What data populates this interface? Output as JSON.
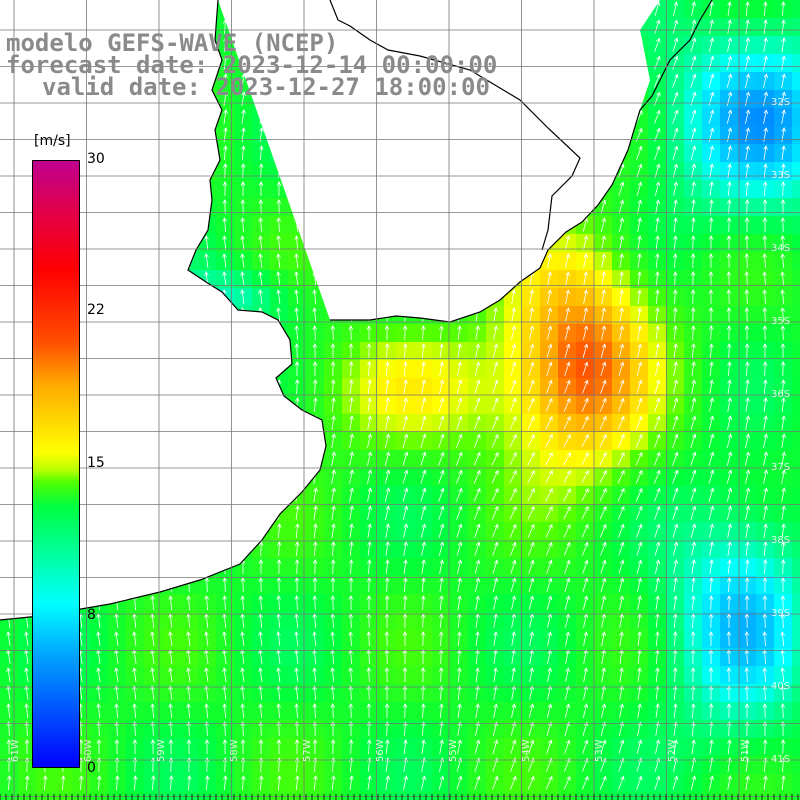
{
  "title": {
    "line1": "modelo GEFS-WAVE (NCEP)",
    "line2": "forecast date: 2023-12-14 00:00:00",
    "line3": "valid date: 2023-12-27 18:00:00"
  },
  "colorbar": {
    "unit": "[m/s]",
    "ticks": [
      "30",
      "22",
      "15",
      "8",
      "0"
    ],
    "min": 0,
    "max": 30
  },
  "map": {
    "variable": "wind speed",
    "lat_labels": [
      "32S",
      "33S",
      "34S",
      "35S",
      "36S",
      "37S",
      "38S",
      "39S",
      "40S",
      "41S"
    ],
    "lon_labels": [
      "61W",
      "60W",
      "59W",
      "58W",
      "57W",
      "56W",
      "55W",
      "54W",
      "53W",
      "52W",
      "51W"
    ],
    "land_color": "#ffffff",
    "coast_color": "#000000",
    "grid_color": "#777777",
    "arrow_color": "#ffffff"
  }
}
